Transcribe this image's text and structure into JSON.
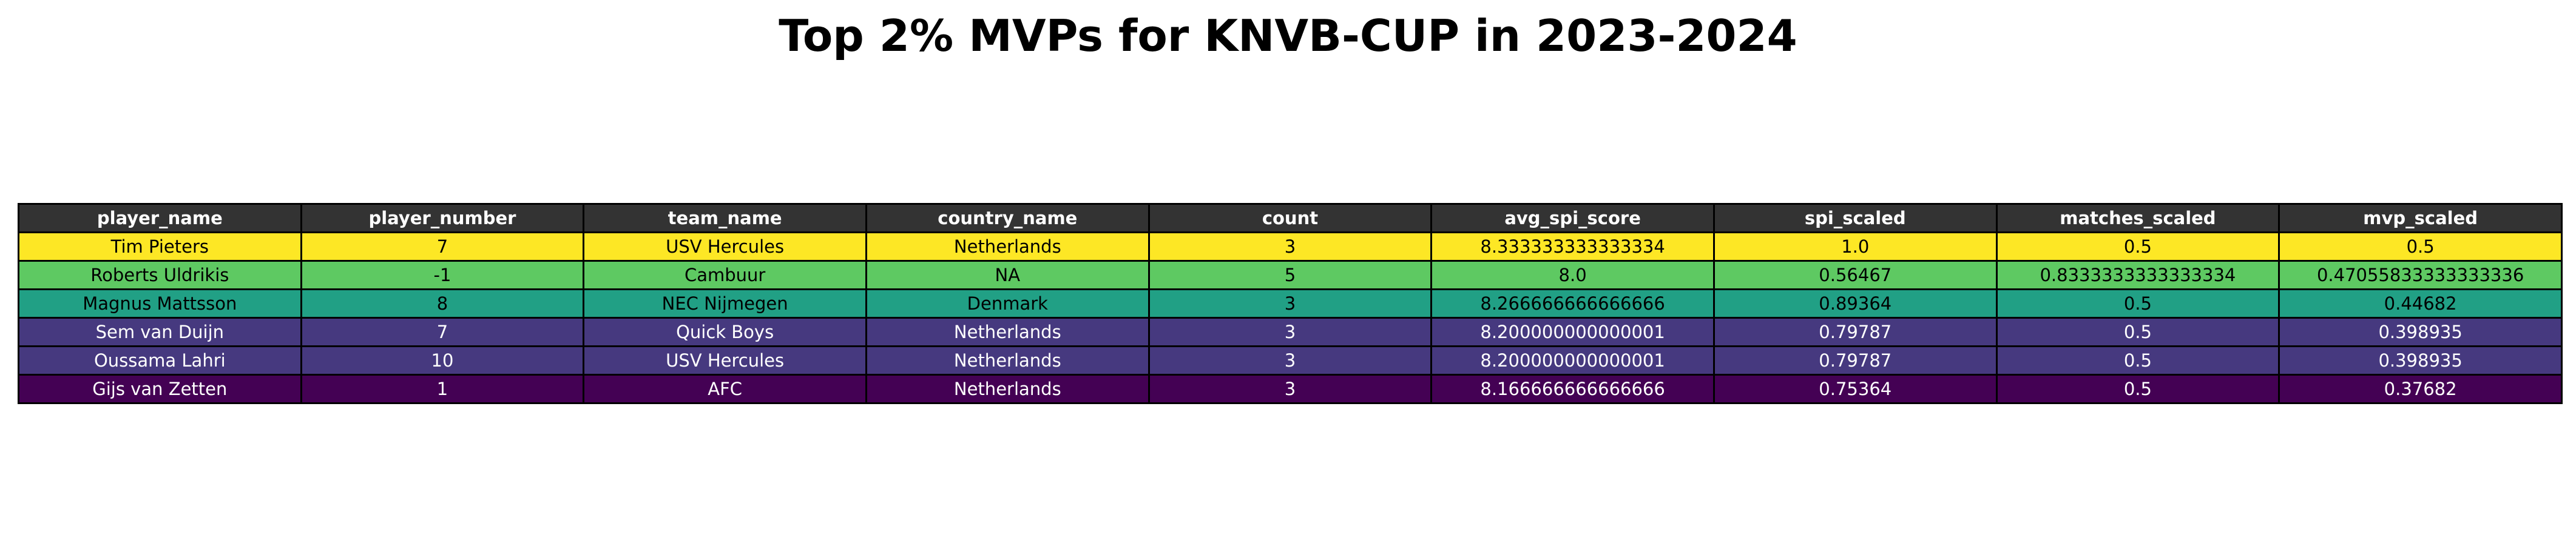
{
  "chart_data": {
    "type": "table",
    "title": "Top 2% MVPs for KNVB-CUP in 2023-2024",
    "columns": [
      "player_name",
      "player_number",
      "team_name",
      "country_name",
      "count",
      "avg_spi_score",
      "spi_scaled",
      "matches_scaled",
      "mvp_scaled"
    ],
    "header_color": "#333333",
    "header_text_color": "#ffffff",
    "rows": [
      {
        "cells": [
          "Tim Pieters",
          "7",
          "USV Hercules",
          "Netherlands",
          "3",
          "8.333333333333334",
          "1.0",
          "0.5",
          "0.5"
        ],
        "color": "#fde725",
        "text_color": "#000000"
      },
      {
        "cells": [
          "Roberts Uldrikis",
          "-1",
          "Cambuur",
          "NA",
          "5",
          "8.0",
          "0.56467",
          "0.8333333333333334",
          "0.47055833333333336"
        ],
        "color": "#5ec962",
        "text_color": "#000000"
      },
      {
        "cells": [
          "Magnus Mattsson",
          "8",
          "NEC Nijmegen",
          "Denmark",
          "3",
          "8.266666666666666",
          "0.89364",
          "0.5",
          "0.44682"
        ],
        "color": "#21a085",
        "text_color": "#000000"
      },
      {
        "cells": [
          "Sem van Duijn",
          "7",
          "Quick Boys",
          "Netherlands",
          "3",
          "8.200000000000001",
          "0.79787",
          "0.5",
          "0.398935"
        ],
        "color": "#46397f",
        "text_color": "#ffffff"
      },
      {
        "cells": [
          "Oussama Lahri",
          "10",
          "USV Hercules",
          "Netherlands",
          "3",
          "8.200000000000001",
          "0.79787",
          "0.5",
          "0.398935"
        ],
        "color": "#46397f",
        "text_color": "#ffffff"
      },
      {
        "cells": [
          "Gijs van Zetten",
          "1",
          "AFC",
          "Netherlands",
          "3",
          "8.166666666666666",
          "0.75364",
          "0.5",
          "0.37682"
        ],
        "color": "#440154",
        "text_color": "#ffffff"
      }
    ]
  }
}
